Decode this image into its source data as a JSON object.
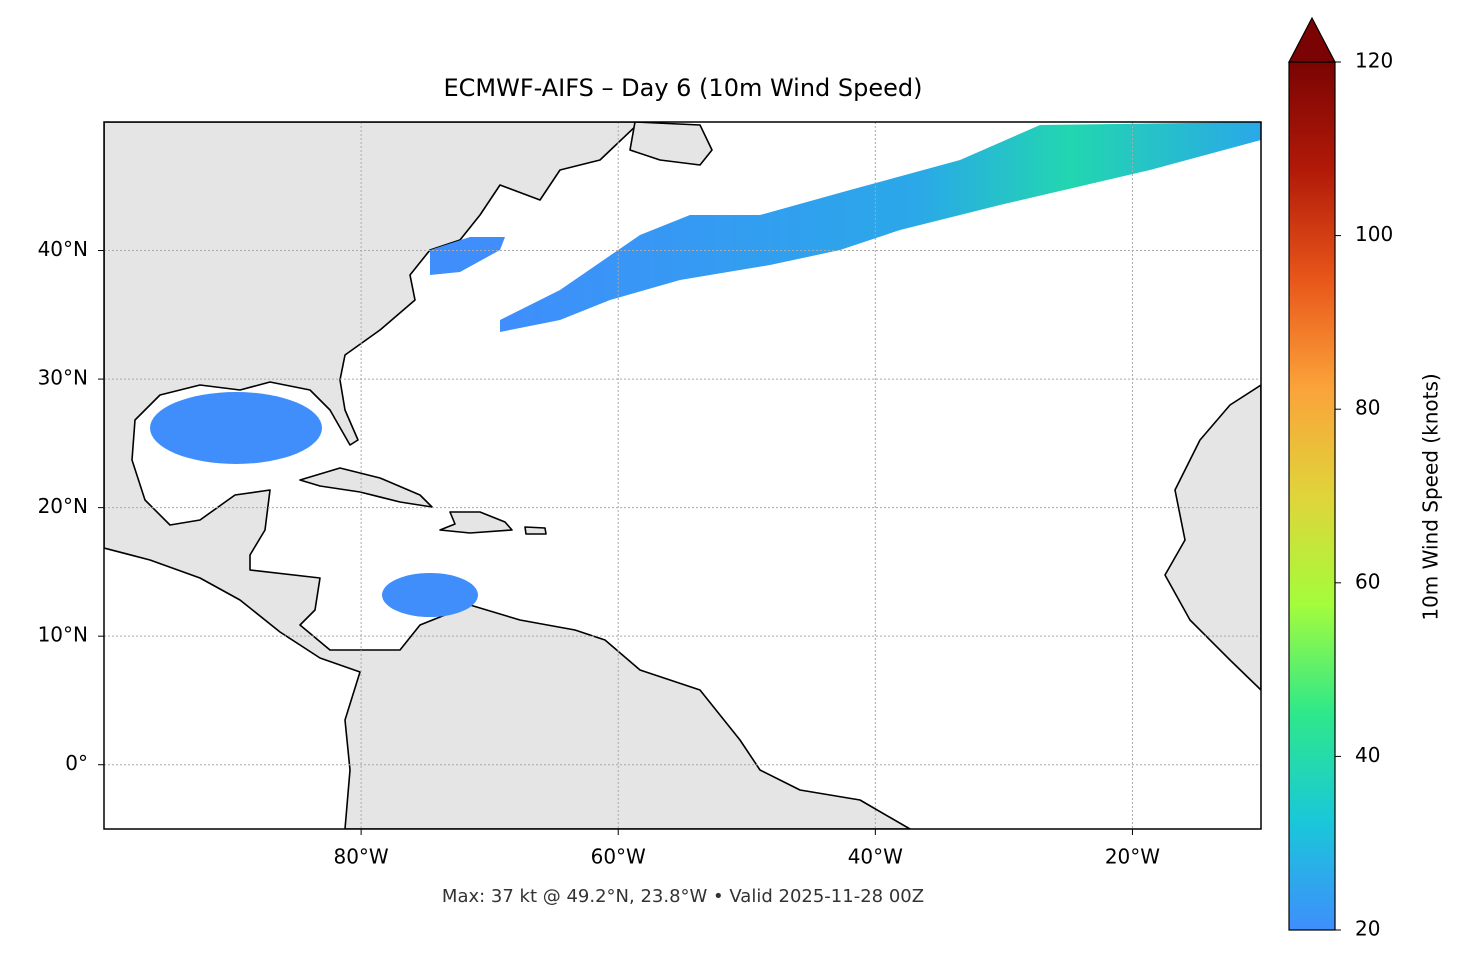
{
  "chart_data": {
    "type": "map",
    "title": "ECMWF-AIFS – Day 6 (10m Wind Speed)",
    "footer": "Max: 37 kt @ 49.2°N, 23.8°W • Valid 2025-11-28 00Z",
    "xlim": [
      -100,
      -10
    ],
    "ylim": [
      -5,
      50
    ],
    "xticks": [
      {
        "value": -80,
        "label": "80°W"
      },
      {
        "value": -60,
        "label": "60°W"
      },
      {
        "value": -40,
        "label": "40°W"
      },
      {
        "value": -20,
        "label": "20°W"
      }
    ],
    "yticks": [
      {
        "value": 0,
        "label": "0°"
      },
      {
        "value": 10,
        "label": "10°N"
      },
      {
        "value": 20,
        "label": "20°N"
      },
      {
        "value": 30,
        "label": "30°N"
      },
      {
        "value": 40,
        "label": "40°N"
      }
    ],
    "grid": true,
    "colorbar": {
      "label": "10m Wind Speed (knots)",
      "lim": [
        20,
        120
      ],
      "ticks": [
        20,
        40,
        60,
        80,
        100,
        120
      ],
      "colors": [
        "#3f8efc",
        "#1ac7d9",
        "#2ee88a",
        "#a4fc3c",
        "#e0d43a",
        "#fba33a",
        "#e8561a",
        "#b21a08",
        "#7a0403"
      ]
    }
  }
}
